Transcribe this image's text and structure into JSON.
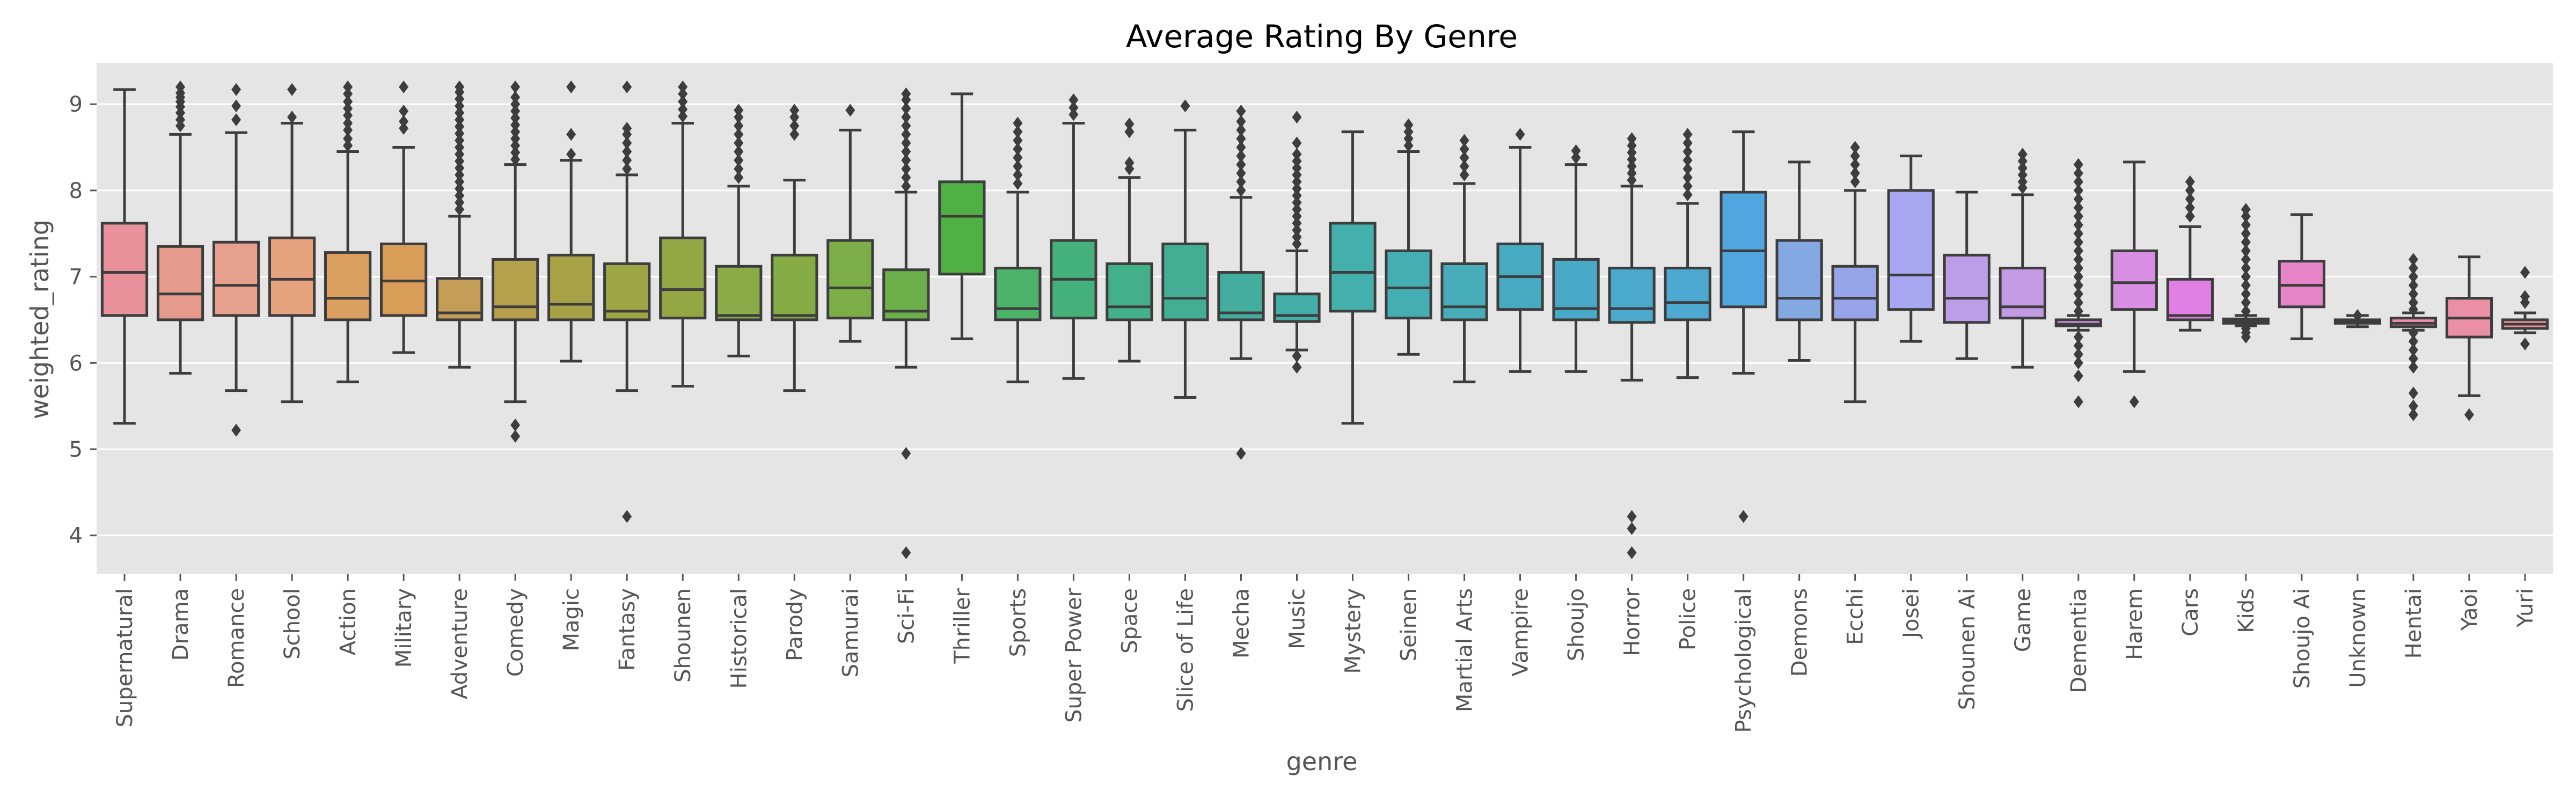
{
  "chart_data": {
    "type": "box",
    "title": "Average Rating By Genre",
    "xlabel": "genre",
    "ylabel": "weighted_rating",
    "ylim": [
      3.55,
      9.48
    ],
    "yticks": [
      4,
      5,
      6,
      7,
      8,
      9
    ],
    "grid": true,
    "background": "#e5e5e5",
    "box_edge_color": "#3d3d3d",
    "categories": [
      "Supernatural",
      "Drama",
      "Romance",
      "School",
      "Action",
      "Military",
      "Adventure",
      "Comedy",
      "Magic",
      "Fantasy",
      "Shounen",
      "Historical",
      "Parody",
      "Samurai",
      "Sci-Fi",
      "Thriller",
      "Sports",
      "Super Power",
      "Space",
      "Slice of Life",
      "Mecha",
      "Music",
      "Mystery",
      "Seinen",
      "Martial Arts",
      "Vampire",
      "Shoujo",
      "Horror",
      "Police",
      "Psychological",
      "Demons",
      "Ecchi",
      "Josei",
      "Shounen Ai",
      "Game",
      "Dementia",
      "Harem",
      "Cars",
      "Kids",
      "Shoujo Ai",
      "Unknown",
      "Hentai",
      "Yaoi",
      "Yuri"
    ],
    "colors": [
      "#e8919b",
      "#e59a8c",
      "#e79f8e",
      "#e6a17e",
      "#dba060",
      "#d99d5a",
      "#c49d56",
      "#b5a04c",
      "#a8a246",
      "#9ea544",
      "#93a845",
      "#8bab48",
      "#85ab45",
      "#7cad47",
      "#6cb04a",
      "#4fb143",
      "#4db26a",
      "#44b17c",
      "#44b089",
      "#44ae95",
      "#43ad9e",
      "#43ada8",
      "#44b0ae",
      "#44aeb2",
      "#47adbb",
      "#46abc0",
      "#48aac6",
      "#4aa9cc",
      "#4da9d2",
      "#52a6df",
      "#84a9e2",
      "#97a4ea",
      "#a8a7f1",
      "#bb9de8",
      "#c49ae5",
      "#cd93e7",
      "#d68fe1",
      "#e07fe4",
      "#e181d6",
      "#e684c8",
      "#e88fbb",
      "#ea8eb2",
      "#eb8fa7",
      "#e8929c"
    ],
    "boxes": [
      {
        "whislo": 5.3,
        "q1": 6.55,
        "med": 7.05,
        "q3": 7.62,
        "whishi": 9.17,
        "fliers": []
      },
      {
        "whislo": 5.88,
        "q1": 6.5,
        "med": 6.8,
        "q3": 7.35,
        "whishi": 8.65,
        "fliers": [
          8.75,
          8.82,
          8.9,
          8.97,
          9.03,
          9.08,
          9.13,
          9.2
        ]
      },
      {
        "whislo": 5.68,
        "q1": 6.55,
        "med": 6.9,
        "q3": 7.4,
        "whishi": 8.67,
        "fliers": [
          5.22,
          8.82,
          8.98,
          9.17
        ]
      },
      {
        "whislo": 5.55,
        "q1": 6.55,
        "med": 6.97,
        "q3": 7.45,
        "whishi": 8.78,
        "fliers": [
          8.85,
          9.17
        ]
      },
      {
        "whislo": 5.78,
        "q1": 6.5,
        "med": 6.75,
        "q3": 7.28,
        "whishi": 8.45,
        "fliers": [
          8.52,
          8.6,
          8.7,
          8.78,
          8.87,
          8.95,
          9.03,
          9.12,
          9.2
        ]
      },
      {
        "whislo": 6.12,
        "q1": 6.55,
        "med": 6.95,
        "q3": 7.38,
        "whishi": 8.5,
        "fliers": [
          8.72,
          8.8,
          8.92,
          9.2
        ]
      },
      {
        "whislo": 5.95,
        "q1": 6.5,
        "med": 6.58,
        "q3": 6.98,
        "whishi": 7.7,
        "fliers": [
          7.78,
          7.86,
          7.94,
          8.02,
          8.1,
          8.18,
          8.26,
          8.34,
          8.42,
          8.5,
          8.58,
          8.66,
          8.74,
          8.82,
          8.9,
          8.98,
          9.06,
          9.14,
          9.2
        ]
      },
      {
        "whislo": 5.55,
        "q1": 6.5,
        "med": 6.65,
        "q3": 7.2,
        "whishi": 8.3,
        "fliers": [
          5.15,
          5.28,
          8.36,
          8.44,
          8.52,
          8.6,
          8.68,
          8.76,
          8.84,
          8.92,
          9.0,
          9.08,
          9.2
        ]
      },
      {
        "whislo": 6.02,
        "q1": 6.5,
        "med": 6.68,
        "q3": 7.25,
        "whishi": 8.35,
        "fliers": [
          8.42,
          8.65,
          9.2
        ]
      },
      {
        "whislo": 5.68,
        "q1": 6.5,
        "med": 6.6,
        "q3": 7.15,
        "whishi": 8.18,
        "fliers": [
          4.22,
          8.25,
          8.35,
          8.45,
          8.55,
          8.65,
          8.72,
          9.2
        ]
      },
      {
        "whislo": 5.73,
        "q1": 6.52,
        "med": 6.85,
        "q3": 7.45,
        "whishi": 8.78,
        "fliers": [
          8.86,
          8.94,
          9.03,
          9.12,
          9.2
        ]
      },
      {
        "whislo": 6.08,
        "q1": 6.5,
        "med": 6.55,
        "q3": 7.12,
        "whishi": 8.05,
        "fliers": [
          8.15,
          8.25,
          8.35,
          8.45,
          8.55,
          8.65,
          8.75,
          8.85,
          8.93
        ]
      },
      {
        "whislo": 5.68,
        "q1": 6.5,
        "med": 6.55,
        "q3": 7.25,
        "whishi": 8.12,
        "fliers": [
          8.65,
          8.75,
          8.85,
          8.93
        ]
      },
      {
        "whislo": 6.25,
        "q1": 6.52,
        "med": 6.87,
        "q3": 7.42,
        "whishi": 8.7,
        "fliers": [
          8.93
        ]
      },
      {
        "whislo": 5.95,
        "q1": 6.5,
        "med": 6.6,
        "q3": 7.08,
        "whishi": 7.98,
        "fliers": [
          3.8,
          4.95,
          8.05,
          8.15,
          8.25,
          8.35,
          8.45,
          8.55,
          8.65,
          8.75,
          8.85,
          8.95,
          9.05,
          9.12
        ]
      },
      {
        "whislo": 6.28,
        "q1": 7.03,
        "med": 7.7,
        "q3": 8.1,
        "whishi": 9.12,
        "fliers": []
      },
      {
        "whislo": 5.78,
        "q1": 6.5,
        "med": 6.63,
        "q3": 7.1,
        "whishi": 7.98,
        "fliers": [
          8.08,
          8.18,
          8.28,
          8.38,
          8.48,
          8.58,
          8.68,
          8.78
        ]
      },
      {
        "whislo": 5.82,
        "q1": 6.52,
        "med": 6.97,
        "q3": 7.42,
        "whishi": 8.78,
        "fliers": [
          8.88,
          8.96,
          9.05
        ]
      },
      {
        "whislo": 6.02,
        "q1": 6.5,
        "med": 6.65,
        "q3": 7.15,
        "whishi": 8.15,
        "fliers": [
          8.25,
          8.32,
          8.68,
          8.77
        ]
      },
      {
        "whislo": 5.6,
        "q1": 6.5,
        "med": 6.75,
        "q3": 7.38,
        "whishi": 8.7,
        "fliers": [
          8.98
        ]
      },
      {
        "whislo": 6.05,
        "q1": 6.5,
        "med": 6.58,
        "q3": 7.05,
        "whishi": 7.92,
        "fliers": [
          4.95,
          8.0,
          8.1,
          8.2,
          8.3,
          8.4,
          8.5,
          8.6,
          8.7,
          8.8,
          8.92
        ]
      },
      {
        "whislo": 6.15,
        "q1": 6.48,
        "med": 6.55,
        "q3": 6.8,
        "whishi": 7.3,
        "fliers": [
          5.95,
          6.08,
          7.38,
          7.46,
          7.54,
          7.62,
          7.7,
          7.78,
          7.86,
          7.94,
          8.02,
          8.1,
          8.18,
          8.26,
          8.34,
          8.42,
          8.55,
          8.85
        ]
      },
      {
        "whislo": 5.3,
        "q1": 6.6,
        "med": 7.05,
        "q3": 7.62,
        "whishi": 8.68,
        "fliers": []
      },
      {
        "whislo": 6.1,
        "q1": 6.52,
        "med": 6.87,
        "q3": 7.3,
        "whishi": 8.45,
        "fliers": [
          8.52,
          8.6,
          8.68,
          8.76
        ]
      },
      {
        "whislo": 5.78,
        "q1": 6.5,
        "med": 6.65,
        "q3": 7.15,
        "whishi": 8.08,
        "fliers": [
          8.18,
          8.28,
          8.38,
          8.48,
          8.58
        ]
      },
      {
        "whislo": 5.9,
        "q1": 6.62,
        "med": 7.0,
        "q3": 7.38,
        "whishi": 8.5,
        "fliers": [
          8.65
        ]
      },
      {
        "whislo": 5.9,
        "q1": 6.5,
        "med": 6.63,
        "q3": 7.2,
        "whishi": 8.3,
        "fliers": [
          8.38,
          8.46
        ]
      },
      {
        "whislo": 5.8,
        "q1": 6.47,
        "med": 6.63,
        "q3": 7.1,
        "whishi": 8.05,
        "fliers": [
          3.8,
          4.08,
          4.22,
          8.12,
          8.2,
          8.28,
          8.36,
          8.44,
          8.52,
          8.6
        ]
      },
      {
        "whislo": 5.83,
        "q1": 6.5,
        "med": 6.7,
        "q3": 7.1,
        "whishi": 7.85,
        "fliers": [
          7.95,
          8.05,
          8.15,
          8.25,
          8.35,
          8.45,
          8.55,
          8.65
        ]
      },
      {
        "whislo": 5.88,
        "q1": 6.65,
        "med": 7.3,
        "q3": 7.98,
        "whishi": 8.68,
        "fliers": [
          4.22
        ]
      },
      {
        "whislo": 6.03,
        "q1": 6.5,
        "med": 6.75,
        "q3": 7.42,
        "whishi": 8.33,
        "fliers": []
      },
      {
        "whislo": 5.55,
        "q1": 6.5,
        "med": 6.75,
        "q3": 7.12,
        "whishi": 8.0,
        "fliers": [
          8.1,
          8.2,
          8.3,
          8.4,
          8.5
        ]
      },
      {
        "whislo": 6.25,
        "q1": 6.62,
        "med": 7.02,
        "q3": 8.0,
        "whishi": 8.4,
        "fliers": []
      },
      {
        "whislo": 6.05,
        "q1": 6.47,
        "med": 6.75,
        "q3": 7.25,
        "whishi": 7.98,
        "fliers": []
      },
      {
        "whislo": 5.95,
        "q1": 6.52,
        "med": 6.65,
        "q3": 7.1,
        "whishi": 7.95,
        "fliers": [
          8.03,
          8.1,
          8.18,
          8.26,
          8.34,
          8.42
        ]
      },
      {
        "whislo": 6.38,
        "q1": 6.43,
        "med": 6.45,
        "q3": 6.5,
        "whishi": 6.55,
        "fliers": [
          5.55,
          5.85,
          6.0,
          6.1,
          6.2,
          6.3,
          6.6,
          6.7,
          6.8,
          6.9,
          7.0,
          7.1,
          7.2,
          7.3,
          7.4,
          7.5,
          7.6,
          7.7,
          7.8,
          7.9,
          8.0,
          8.1,
          8.2,
          8.3
        ]
      },
      {
        "whislo": 5.9,
        "q1": 6.62,
        "med": 6.93,
        "q3": 7.3,
        "whishi": 8.33,
        "fliers": [
          5.55
        ]
      },
      {
        "whislo": 6.38,
        "q1": 6.5,
        "med": 6.55,
        "q3": 6.97,
        "whishi": 7.58,
        "fliers": [
          7.7,
          7.8,
          7.9,
          8.0,
          8.1
        ]
      },
      {
        "whislo": 6.43,
        "q1": 6.46,
        "med": 6.48,
        "q3": 6.51,
        "whishi": 6.55,
        "fliers": [
          6.3,
          6.35,
          6.4,
          6.6,
          6.7,
          6.8,
          6.9,
          7.0,
          7.1,
          7.2,
          7.3,
          7.4,
          7.5,
          7.6,
          7.7,
          7.78
        ]
      },
      {
        "whislo": 6.28,
        "q1": 6.65,
        "med": 6.9,
        "q3": 7.18,
        "whishi": 7.72,
        "fliers": []
      },
      {
        "whislo": 6.42,
        "q1": 6.46,
        "med": 6.48,
        "q3": 6.5,
        "whishi": 6.55,
        "fliers": [
          6.55
        ]
      },
      {
        "whislo": 6.38,
        "q1": 6.42,
        "med": 6.46,
        "q3": 6.52,
        "whishi": 6.58,
        "fliers": [
          5.4,
          5.5,
          5.65,
          5.95,
          6.05,
          6.15,
          6.25,
          6.35,
          6.62,
          6.7,
          6.8,
          6.9,
          7.0,
          7.1,
          7.2
        ]
      },
      {
        "whislo": 5.62,
        "q1": 6.3,
        "med": 6.52,
        "q3": 6.75,
        "whishi": 7.23,
        "fliers": [
          5.4
        ]
      },
      {
        "whislo": 6.35,
        "q1": 6.4,
        "med": 6.45,
        "q3": 6.5,
        "whishi": 6.58,
        "fliers": [
          6.22,
          6.7,
          6.77,
          7.05
        ]
      }
    ]
  }
}
